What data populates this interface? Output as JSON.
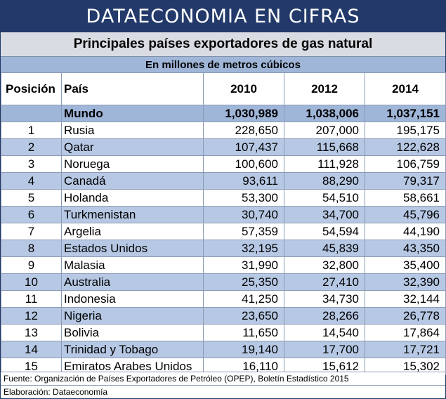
{
  "banner": "DATAECONOMIA EN CIFRAS",
  "title": "Principales países exportadores de gas natural",
  "subtitle": "En millones de metros cúbicos",
  "headers": {
    "position": "Posición",
    "country": "País",
    "y2010": "2010",
    "y2012": "2012",
    "y2014": "2014"
  },
  "world": {
    "label": "Mundo",
    "v2010": "1,030,989",
    "v2012": "1,038,006",
    "v2014": "1,037,151"
  },
  "rows": [
    {
      "pos": "1",
      "country": "Rusia",
      "v2010": "228,650",
      "v2012": "207,000",
      "v2014": "195,175"
    },
    {
      "pos": "2",
      "country": "Qatar",
      "v2010": "107,437",
      "v2012": "115,668",
      "v2014": "122,628"
    },
    {
      "pos": "3",
      "country": "Noruega",
      "v2010": "100,600",
      "v2012": "111,928",
      "v2014": "106,759"
    },
    {
      "pos": "4",
      "country": "Canadá",
      "v2010": "93,611",
      "v2012": "88,290",
      "v2014": "79,317"
    },
    {
      "pos": "5",
      "country": "Holanda",
      "v2010": "53,300",
      "v2012": "54,510",
      "v2014": "58,661"
    },
    {
      "pos": "6",
      "country": "Turkmenistan",
      "v2010": "30,740",
      "v2012": "34,700",
      "v2014": "45,796"
    },
    {
      "pos": "7",
      "country": "Argelia",
      "v2010": "57,359",
      "v2012": "54,594",
      "v2014": "44,190"
    },
    {
      "pos": "8",
      "country": "Estados Unidos",
      "v2010": "32,195",
      "v2012": "45,839",
      "v2014": "43,350"
    },
    {
      "pos": "9",
      "country": "Malasia",
      "v2010": "31,990",
      "v2012": "32,800",
      "v2014": "35,400"
    },
    {
      "pos": "10",
      "country": "Australia",
      "v2010": "25,350",
      "v2012": "27,410",
      "v2014": "32,390"
    },
    {
      "pos": "11",
      "country": "Indonesia",
      "v2010": "41,250",
      "v2012": "34,730",
      "v2014": "32,144"
    },
    {
      "pos": "12",
      "country": "Nigeria",
      "v2010": "23,650",
      "v2012": "28,266",
      "v2014": "26,778"
    },
    {
      "pos": "13",
      "country": "Bolivia",
      "v2010": "11,650",
      "v2012": "14,540",
      "v2014": "17,864"
    },
    {
      "pos": "14",
      "country": "Trinidad y Tobago",
      "v2010": "19,140",
      "v2012": "17,700",
      "v2014": "17,721"
    },
    {
      "pos": "15",
      "country": "Emiratos Arabes Unidos",
      "v2010": "16,110",
      "v2012": "15,612",
      "v2014": "15,302"
    }
  ],
  "source": "Fuente: Organización de Países Exportadores de Petróleo (OPEP), Boletín Estadístico 2015",
  "credit": "Elaboración: Dataeconomía",
  "colors": {
    "banner": "#22396a",
    "title_bg": "#d9dde3",
    "subtitle_bg": "#9fb6d9",
    "stripe": "#b6c8e4"
  }
}
